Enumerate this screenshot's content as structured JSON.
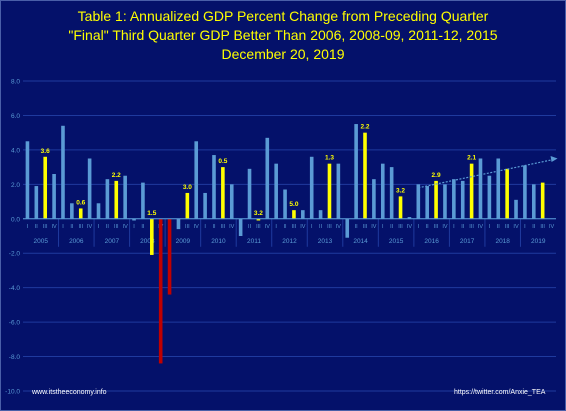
{
  "title": {
    "line1": "Table 1: Annualized GDP Percent Change from Preceding Quarter",
    "line2": "\"Final\" Third Quarter GDP Better Than 2006, 2008-09, 2011-12, 2015",
    "line3": "December 20, 2019"
  },
  "footer": {
    "left": "www.itstheeconomy.info",
    "right": "https://twitter.com/Anxie_TEA"
  },
  "colors": {
    "background": "#04116a",
    "bar_default": "#5b9bd5",
    "bar_highlight": "#ffff00",
    "bar_negative": "#c00000",
    "gridline": "#1f3a9e",
    "axis_text": "#5b9bd5",
    "label_text": "#ffff00",
    "trend_arrow": "#5b9bd5"
  },
  "chart_data": {
    "type": "bar",
    "title": "Table 1: Annualized GDP Percent Change from Preceding Quarter",
    "xlabel": "",
    "ylabel": "",
    "ylim": [
      -10,
      8
    ],
    "yticks": [
      "8.0",
      "6.0",
      "4.0",
      "2.0",
      "0.0",
      "-2.0",
      "-4.0",
      "-6.0",
      "-8.0",
      "-10.0"
    ],
    "ytick_values": [
      8,
      6,
      4,
      2,
      0,
      -2,
      -4,
      -6,
      -8,
      -10
    ],
    "grid": true,
    "quarter_labels": [
      "I",
      "II",
      "III",
      "IV"
    ],
    "years": [
      "2005",
      "2006",
      "2007",
      "2008",
      "2009",
      "2010",
      "2011",
      "2012",
      "2013",
      "2014",
      "2015",
      "2016",
      "2017",
      "2018",
      "2019"
    ],
    "values": [
      [
        4.5,
        1.9,
        3.6,
        2.6
      ],
      [
        5.4,
        0.9,
        0.6,
        3.5
      ],
      [
        0.9,
        2.3,
        2.2,
        2.5
      ],
      [
        -0.1,
        2.1,
        -2.1,
        -8.4
      ],
      [
        -4.4,
        -0.6,
        1.5,
        4.5
      ],
      [
        1.5,
        3.7,
        3.0,
        2.0
      ],
      [
        -1.0,
        2.9,
        -0.1,
        4.7
      ],
      [
        3.2,
        1.7,
        0.5,
        0.5
      ],
      [
        3.6,
        0.5,
        3.2,
        3.2
      ],
      [
        -1.1,
        5.5,
        5.0,
        2.3
      ],
      [
        3.2,
        3.0,
        1.3,
        0.1
      ],
      [
        2.0,
        1.9,
        2.2,
        2.0
      ],
      [
        2.3,
        2.2,
        3.2,
        3.5
      ],
      [
        2.5,
        3.5,
        2.9,
        1.1
      ],
      [
        3.1,
        2.0,
        2.1,
        null
      ]
    ],
    "highlighted_quarter": "III",
    "data_labels": [
      "3.6",
      "0.6",
      "2.2",
      "1.5",
      "3.0",
      "0.5",
      "3.2",
      "5.0",
      "1.3",
      "2.2",
      "3.2",
      "2.9",
      "2.1"
    ],
    "trend_arrow": {
      "from": {
        "x": "2016 Q1",
        "y": 1.8
      },
      "to": {
        "x": "2019 Q4",
        "y": 3.5
      }
    }
  }
}
